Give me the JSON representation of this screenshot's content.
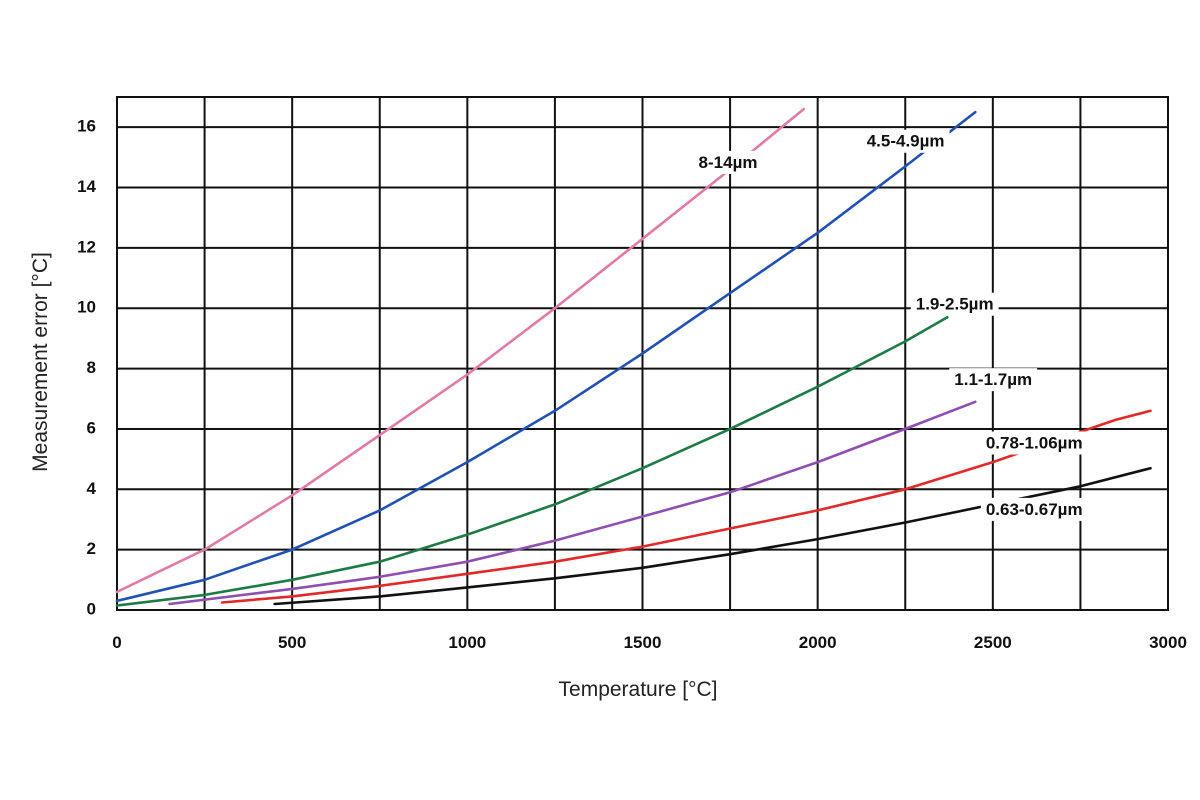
{
  "chart_data": {
    "type": "line",
    "title": "",
    "xlabel": "Temperature [°C]",
    "ylabel": "Measurement error [°C]",
    "xlim": [
      0,
      3000
    ],
    "ylim": [
      0,
      17
    ],
    "grid": true,
    "legend": "inline labels",
    "x_ticks": [
      "0",
      "500",
      "1000",
      "1500",
      "2000",
      "2500",
      "3000"
    ],
    "y_ticks": [
      "0",
      "2",
      "4",
      "6",
      "8",
      "10",
      "12",
      "14",
      "16"
    ],
    "series": [
      {
        "name": "8-14µm",
        "color": "#e07aa6",
        "points": [
          [
            0,
            0.6
          ],
          [
            250,
            2.0
          ],
          [
            500,
            3.8
          ],
          [
            750,
            5.8
          ],
          [
            1000,
            7.8
          ],
          [
            1250,
            10.0
          ],
          [
            1500,
            12.3
          ],
          [
            1750,
            14.6
          ],
          [
            1960,
            16.6
          ]
        ]
      },
      {
        "name": "4.5-4.9µm",
        "color": "#2251b4",
        "points": [
          [
            0,
            0.3
          ],
          [
            250,
            1.0
          ],
          [
            500,
            2.0
          ],
          [
            750,
            3.3
          ],
          [
            1000,
            4.9
          ],
          [
            1250,
            6.6
          ],
          [
            1500,
            8.5
          ],
          [
            1750,
            10.5
          ],
          [
            2000,
            12.5
          ],
          [
            2250,
            14.7
          ],
          [
            2450,
            16.5
          ]
        ]
      },
      {
        "name": "1.9-2.5µm",
        "color": "#1e7a46",
        "points": [
          [
            0,
            0.15
          ],
          [
            250,
            0.5
          ],
          [
            500,
            1.0
          ],
          [
            750,
            1.6
          ],
          [
            1000,
            2.5
          ],
          [
            1250,
            3.5
          ],
          [
            1500,
            4.7
          ],
          [
            1750,
            6.0
          ],
          [
            2000,
            7.4
          ],
          [
            2250,
            8.9
          ],
          [
            2370,
            9.7
          ]
        ]
      },
      {
        "name": "1.1-1.7µm",
        "color": "#8e4fb0",
        "points": [
          [
            150,
            0.2
          ],
          [
            500,
            0.7
          ],
          [
            750,
            1.1
          ],
          [
            1000,
            1.6
          ],
          [
            1250,
            2.3
          ],
          [
            1500,
            3.1
          ],
          [
            1750,
            3.9
          ],
          [
            2000,
            4.9
          ],
          [
            2250,
            6.0
          ],
          [
            2450,
            6.9
          ]
        ]
      },
      {
        "name": "0.78-1.06µm",
        "color": "#e02a2a",
        "points": [
          [
            300,
            0.25
          ],
          [
            500,
            0.45
          ],
          [
            750,
            0.8
          ],
          [
            1000,
            1.2
          ],
          [
            1250,
            1.6
          ],
          [
            1500,
            2.1
          ],
          [
            1750,
            2.7
          ],
          [
            2000,
            3.3
          ],
          [
            2250,
            4.0
          ],
          [
            2500,
            4.9
          ],
          [
            2850,
            6.3
          ],
          [
            2950,
            6.6
          ]
        ]
      },
      {
        "name": "0.63-0.67µm",
        "color": "#111111",
        "points": [
          [
            450,
            0.2
          ],
          [
            750,
            0.45
          ],
          [
            1000,
            0.75
          ],
          [
            1250,
            1.05
          ],
          [
            1500,
            1.4
          ],
          [
            1750,
            1.85
          ],
          [
            2000,
            2.35
          ],
          [
            2250,
            2.9
          ],
          [
            2500,
            3.5
          ],
          [
            2750,
            4.1
          ],
          [
            2950,
            4.7
          ]
        ]
      }
    ],
    "annotations": [
      "8-14µm",
      "4.5-4.9µm",
      "1.9-2.5µm",
      "1.1-1.7µm",
      "0.78-1.06µm",
      "0.63-0.67µm"
    ]
  }
}
